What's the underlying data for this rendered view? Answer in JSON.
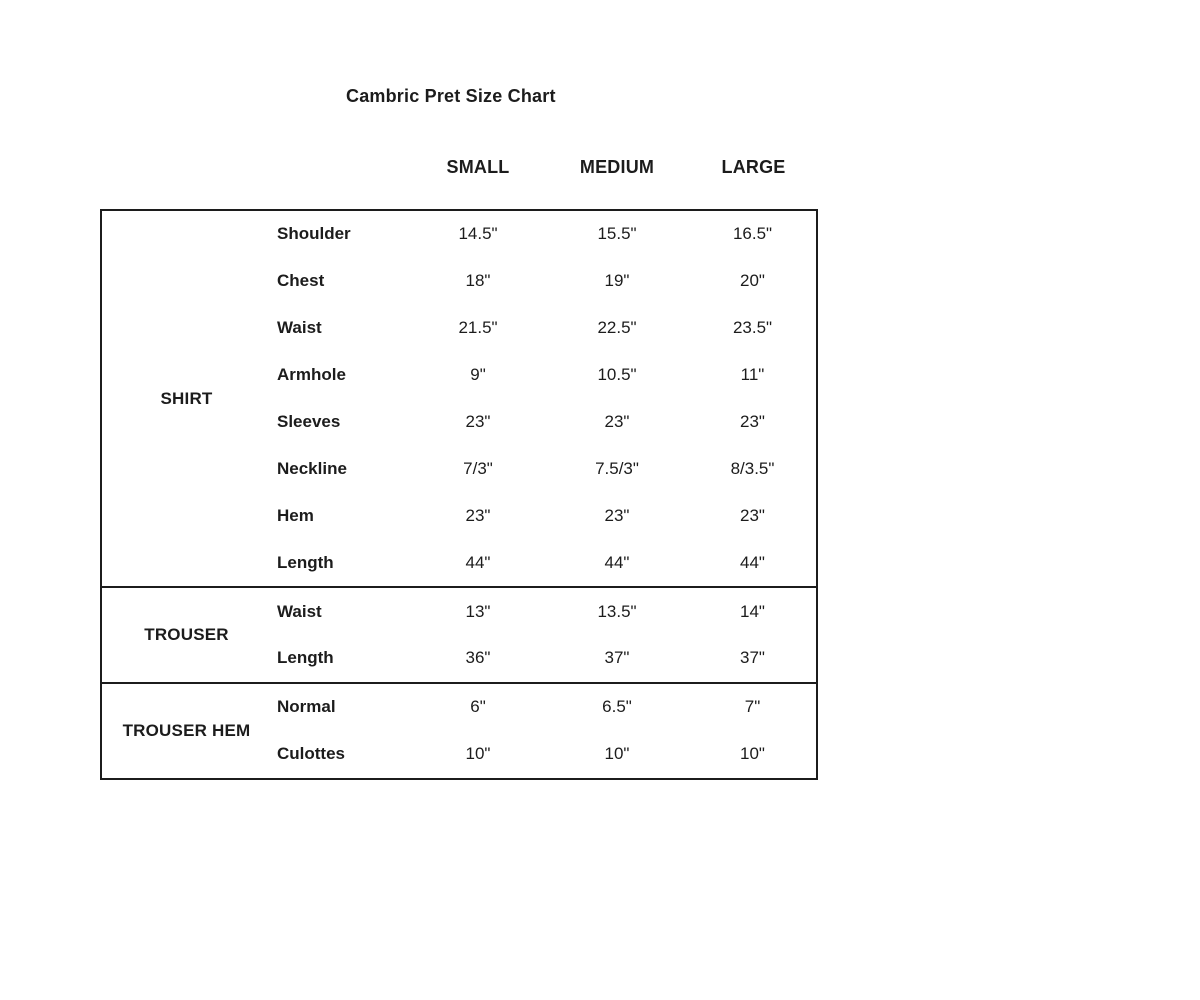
{
  "page": {
    "title": "Cambric Pret Size Chart"
  },
  "columns": [
    "SMALL",
    "MEDIUM",
    "LARGE"
  ],
  "sections": [
    {
      "label": "SHIRT",
      "rows": [
        {
          "name": "Shoulder",
          "values": [
            "14.5\"",
            "15.5\"",
            "16.5\""
          ]
        },
        {
          "name": "Chest",
          "values": [
            "18\"",
            "19\"",
            "20\""
          ]
        },
        {
          "name": "Waist",
          "values": [
            "21.5\"",
            "22.5\"",
            "23.5\""
          ]
        },
        {
          "name": "Armhole",
          "values": [
            "9\"",
            "10.5\"",
            "11\""
          ]
        },
        {
          "name": "Sleeves",
          "values": [
            "23\"",
            "23\"",
            "23\""
          ]
        },
        {
          "name": "Neckline",
          "values": [
            "7/3\"",
            "7.5/3\"",
            "8/3.5\""
          ]
        },
        {
          "name": "Hem",
          "values": [
            "23\"",
            "23\"",
            "23\""
          ]
        },
        {
          "name": "Length",
          "values": [
            "44\"",
            "44\"",
            "44\""
          ]
        }
      ]
    },
    {
      "label": "TROUSER",
      "rows": [
        {
          "name": "Waist",
          "values": [
            "13\"",
            "13.5\"",
            "14\""
          ]
        },
        {
          "name": "Length",
          "values": [
            "36\"",
            "37\"",
            "37\""
          ]
        }
      ]
    },
    {
      "label": "TROUSER HEM",
      "rows": [
        {
          "name": "Normal",
          "values": [
            "6\"",
            "6.5\"",
            "7\""
          ]
        },
        {
          "name": "Culottes",
          "values": [
            "10\"",
            "10\"",
            "10\""
          ]
        }
      ]
    }
  ],
  "chart_data": {
    "type": "table",
    "title": "Cambric Pret Size Chart",
    "columns": [
      "",
      "",
      "SMALL",
      "MEDIUM",
      "LARGE"
    ],
    "rows": [
      [
        "SHIRT",
        "Shoulder",
        "14.5\"",
        "15.5\"",
        "16.5\""
      ],
      [
        "SHIRT",
        "Chest",
        "18\"",
        "19\"",
        "20\""
      ],
      [
        "SHIRT",
        "Waist",
        "21.5\"",
        "22.5\"",
        "23.5\""
      ],
      [
        "SHIRT",
        "Armhole",
        "9\"",
        "10.5\"",
        "11\""
      ],
      [
        "SHIRT",
        "Sleeves",
        "23\"",
        "23\"",
        "23\""
      ],
      [
        "SHIRT",
        "Neckline",
        "7/3\"",
        "7.5/3\"",
        "8/3.5\""
      ],
      [
        "SHIRT",
        "Hem",
        "23\"",
        "23\"",
        "23\""
      ],
      [
        "SHIRT",
        "Length",
        "44\"",
        "44\"",
        "44\""
      ],
      [
        "TROUSER",
        "Waist",
        "13\"",
        "13.5\"",
        "14\""
      ],
      [
        "TROUSER",
        "Length",
        "36\"",
        "37\"",
        "37\""
      ],
      [
        "TROUSER HEM",
        "Normal",
        "6\"",
        "6.5\"",
        "7\""
      ],
      [
        "TROUSER HEM",
        "Culottes",
        "10\"",
        "10\"",
        "10\""
      ]
    ]
  },
  "colors": {
    "text": "#1c1c1c",
    "border": "#1c1c1c",
    "background": "#ffffff"
  }
}
